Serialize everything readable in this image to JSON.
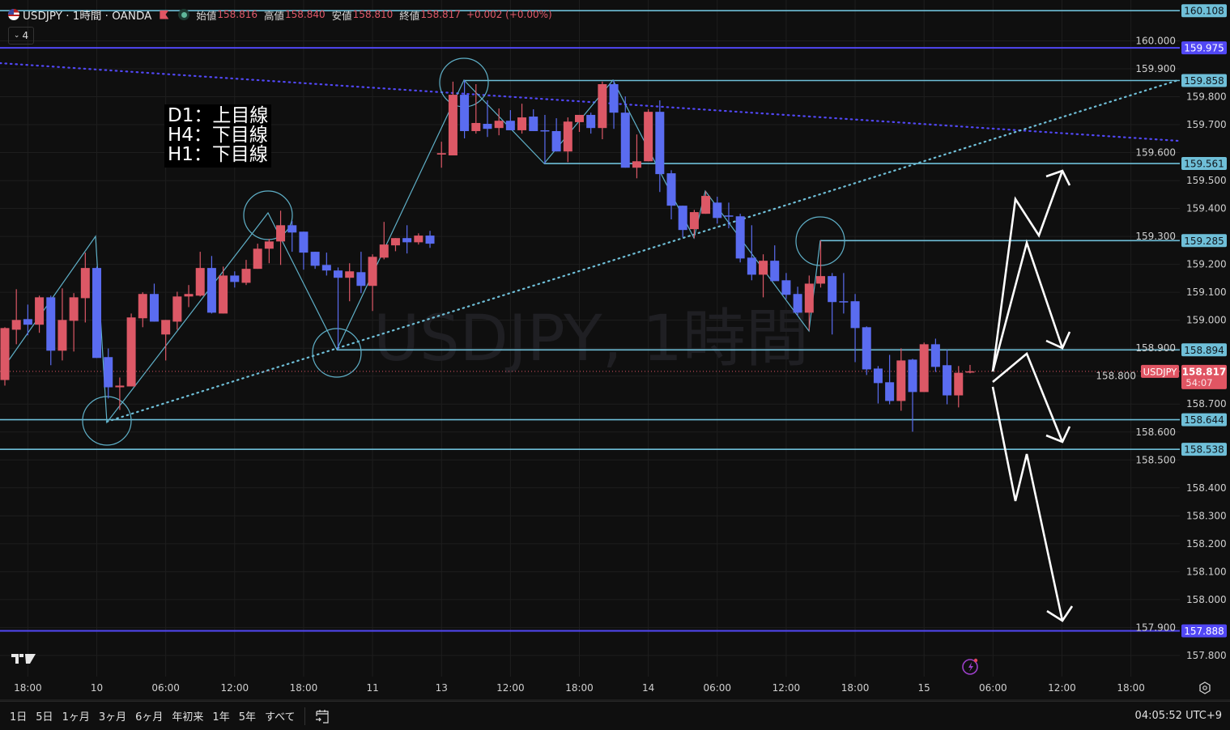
{
  "header": {
    "symbol_title": "USDJPY · 1時間 · OANDA",
    "open_label": "始値",
    "open": "158.816",
    "high_label": "高値",
    "high": "158.840",
    "low_label": "安値",
    "low": "158.810",
    "close_label": "終値",
    "close": "158.817",
    "change": "+0.002 (+0.00%)",
    "indicator_count": "4",
    "icons": [
      "us-flag-icon",
      "red-flag-icon",
      "market-status-dot-icon",
      "chevron-down-icon"
    ]
  },
  "watermark": "USDJPY, 1時間",
  "note_lines": [
    "D1：上目線",
    "H4：下目線",
    "H1：下目線"
  ],
  "colors": {
    "background": "#0f0f0f",
    "up": "#dc5866",
    "down": "#5a6cf0",
    "level_line": "#6fbfd8",
    "purple_line": "#5147f5",
    "current_price": "#e05563",
    "zigzag": "#5fb0c8",
    "arrows": "#ffffff"
  },
  "chart_data": {
    "type": "candlestick",
    "symbol": "USDJPY",
    "interval": "1時間",
    "ylim": [
      157.72,
      160.13
    ],
    "price_ticks": [
      "160.000",
      "159.900",
      "159.800",
      "159.700",
      "159.600",
      "159.500",
      "159.400",
      "159.300",
      "159.200",
      "159.100",
      "159.000",
      "158.900",
      "158.800",
      "158.700",
      "158.600",
      "158.500",
      "158.400",
      "158.300",
      "158.200",
      "158.100",
      "158.000",
      "157.900",
      "157.800"
    ],
    "time_ticks": [
      "18:00",
      "10",
      "06:00",
      "12:00",
      "18:00",
      "11",
      "13",
      "12:00",
      "18:00",
      "14",
      "06:00",
      "12:00",
      "18:00",
      "15",
      "06:00",
      "12:00",
      "18:00"
    ],
    "ohlc": [
      [
        158.786,
        158.975,
        158.766,
        158.972
      ],
      [
        158.966,
        159.111,
        158.914,
        159.001
      ],
      [
        159.004,
        159.056,
        158.946,
        158.984
      ],
      [
        158.984,
        159.088,
        158.955,
        159.082
      ],
      [
        159.082,
        159.088,
        158.839,
        158.891
      ],
      [
        158.891,
        159.114,
        158.856,
        159.001
      ],
      [
        158.998,
        159.097,
        158.888,
        159.082
      ],
      [
        159.079,
        159.242,
        158.992,
        159.187
      ],
      [
        159.187,
        159.192,
        158.865,
        158.865
      ],
      [
        158.868,
        158.899,
        158.72,
        158.76
      ],
      [
        158.76,
        158.795,
        158.679,
        158.766
      ],
      [
        158.763,
        159.024,
        158.763,
        159.01
      ],
      [
        159.007,
        159.1,
        158.975,
        159.094
      ],
      [
        159.094,
        159.131,
        158.995,
        158.995
      ],
      [
        158.949,
        159.001,
        158.856,
        159.001
      ],
      [
        158.995,
        159.102,
        158.966,
        159.085
      ],
      [
        159.085,
        159.126,
        159.047,
        159.094
      ],
      [
        159.088,
        159.245,
        159.085,
        159.187
      ],
      [
        159.187,
        159.23,
        159.024,
        159.027
      ],
      [
        159.024,
        159.192,
        159.024,
        159.16
      ],
      [
        159.16,
        159.175,
        159.117,
        159.137
      ],
      [
        159.134,
        159.216,
        159.126,
        159.184
      ],
      [
        159.184,
        159.274,
        159.184,
        159.256
      ],
      [
        159.256,
        159.291,
        159.204,
        159.282
      ],
      [
        159.282,
        159.392,
        159.198,
        159.34
      ],
      [
        159.34,
        159.355,
        159.245,
        159.314
      ],
      [
        159.317,
        159.317,
        159.181,
        159.242
      ],
      [
        159.245,
        159.245,
        159.184,
        159.195
      ],
      [
        159.198,
        159.242,
        159.16,
        159.178
      ],
      [
        159.178,
        159.189,
        158.894,
        159.152
      ],
      [
        159.152,
        159.204,
        159.068,
        159.175
      ],
      [
        159.172,
        159.245,
        159.097,
        159.123
      ],
      [
        159.123,
        159.236,
        159.033,
        159.227
      ],
      [
        159.224,
        159.352,
        159.218,
        159.271
      ],
      [
        159.268,
        159.294,
        159.247,
        159.294
      ],
      [
        159.294,
        159.34,
        159.239,
        159.279
      ],
      [
        159.279,
        159.311,
        159.271,
        159.303
      ],
      [
        159.303,
        159.32,
        159.259,
        159.274
      ],
      [
        159.593,
        159.639,
        159.546,
        159.598
      ],
      [
        159.59,
        159.854,
        159.59,
        159.807
      ],
      [
        159.807,
        159.859,
        159.651,
        159.677
      ],
      [
        159.677,
        159.845,
        159.668,
        159.706
      ],
      [
        159.703,
        159.787,
        159.656,
        159.685
      ],
      [
        159.688,
        159.758,
        159.662,
        159.714
      ],
      [
        159.714,
        159.752,
        159.68,
        159.68
      ],
      [
        159.68,
        159.775,
        159.668,
        159.726
      ],
      [
        159.729,
        159.755,
        159.677,
        159.677
      ],
      [
        159.68,
        159.735,
        159.561,
        159.677
      ],
      [
        159.677,
        159.723,
        159.604,
        159.604
      ],
      [
        159.604,
        159.726,
        159.566,
        159.711
      ],
      [
        159.709,
        159.735,
        159.674,
        159.735
      ],
      [
        159.735,
        159.743,
        159.668,
        159.688
      ],
      [
        159.688,
        159.854,
        159.648,
        159.845
      ],
      [
        159.845,
        159.859,
        159.685,
        159.743
      ],
      [
        159.743,
        159.801,
        159.546,
        159.546
      ],
      [
        159.546,
        159.665,
        159.508,
        159.569
      ],
      [
        159.569,
        159.755,
        159.569,
        159.746
      ],
      [
        159.746,
        159.787,
        159.459,
        159.523
      ],
      [
        159.526,
        159.537,
        159.361,
        159.41
      ],
      [
        159.41,
        159.41,
        159.297,
        159.323
      ],
      [
        159.326,
        159.395,
        159.294,
        159.387
      ],
      [
        159.381,
        159.462,
        159.381,
        159.445
      ],
      [
        159.421,
        159.442,
        159.346,
        159.366
      ],
      [
        159.375,
        159.421,
        159.329,
        159.372
      ],
      [
        159.372,
        159.381,
        159.207,
        159.221
      ],
      [
        159.224,
        159.34,
        159.143,
        159.163
      ],
      [
        159.163,
        159.236,
        159.082,
        159.213
      ],
      [
        159.213,
        159.268,
        159.14,
        159.14
      ],
      [
        159.143,
        159.169,
        159.076,
        159.091
      ],
      [
        159.094,
        159.12,
        159.015,
        159.027
      ],
      [
        159.027,
        159.16,
        158.963,
        159.131
      ],
      [
        159.131,
        159.285,
        159.117,
        159.158
      ],
      [
        159.158,
        159.169,
        158.949,
        159.065
      ],
      [
        159.068,
        159.169,
        159.024,
        159.065
      ],
      [
        159.068,
        159.094,
        158.85,
        158.972
      ],
      [
        158.975,
        158.978,
        158.804,
        158.824
      ],
      [
        158.827,
        158.836,
        158.702,
        158.775
      ],
      [
        158.778,
        158.876,
        158.699,
        158.711
      ],
      [
        158.711,
        158.899,
        158.676,
        158.856
      ],
      [
        158.859,
        158.862,
        158.601,
        158.743
      ],
      [
        158.743,
        158.92,
        158.743,
        158.914
      ],
      [
        158.914,
        158.934,
        158.815,
        158.833
      ],
      [
        158.839,
        158.894,
        158.699,
        158.731
      ],
      [
        158.731,
        158.836,
        158.688,
        158.812
      ],
      [
        158.816,
        158.84,
        158.81,
        158.817
      ]
    ],
    "horizontal_levels": [
      {
        "price": "160.108",
        "style": "level"
      },
      {
        "price": "159.975",
        "style": "purple"
      },
      {
        "price": "159.858",
        "style": "level"
      },
      {
        "price": "159.561",
        "style": "level"
      },
      {
        "price": "159.285",
        "style": "level"
      },
      {
        "price": "158.894",
        "style": "level"
      },
      {
        "price": "158.644",
        "style": "level"
      },
      {
        "price": "158.538",
        "style": "level"
      },
      {
        "price": "157.888",
        "style": "purple"
      }
    ],
    "current_price": {
      "symbol": "USDJPY",
      "price": "158.817",
      "countdown": "54:07"
    }
  },
  "time_range_buttons": [
    "1日",
    "5日",
    "1ヶ月",
    "3ヶ月",
    "6ヶ月",
    "年初来",
    "1年",
    "5年",
    "すべて"
  ],
  "clock": "04:05:52 UTC+9"
}
